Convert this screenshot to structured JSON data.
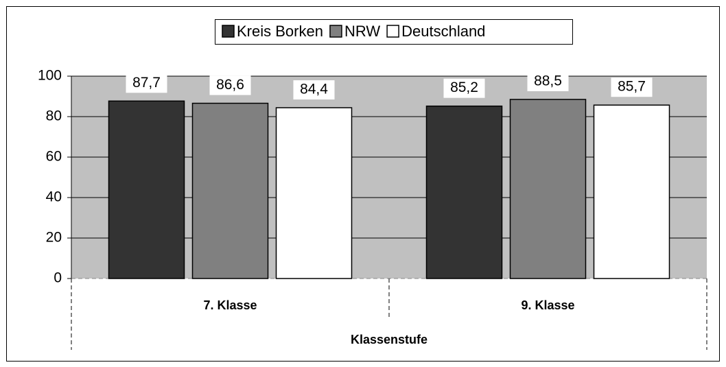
{
  "chart_data": {
    "type": "bar",
    "categories": [
      "7. Klasse",
      "9. Klasse"
    ],
    "x_label": "Klassenstufe",
    "series": [
      {
        "name": "Kreis Borken",
        "color": "#333333",
        "values": [
          87.7,
          85.2
        ],
        "value_labels": [
          "87,7",
          "85,2"
        ]
      },
      {
        "name": "NRW",
        "color": "#808080",
        "values": [
          86.6,
          88.5
        ],
        "value_labels": [
          "86,6",
          "88,5"
        ]
      },
      {
        "name": "Deutschland",
        "color": "#ffffff",
        "values": [
          84.4,
          85.7
        ],
        "value_labels": [
          "84,4",
          "85,7"
        ]
      }
    ],
    "ylim": [
      0,
      100
    ],
    "yticks": [
      0,
      20,
      40,
      60,
      80,
      100
    ],
    "grid": true,
    "legend": "top",
    "plot_background": "#c0c0c0"
  }
}
